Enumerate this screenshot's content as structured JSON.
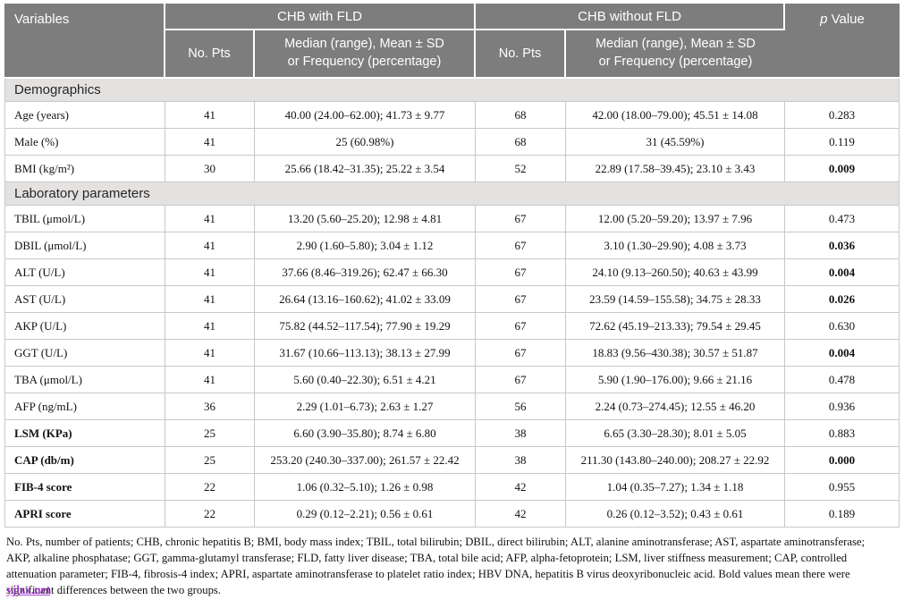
{
  "colors": {
    "header_bg": "#7d7d7d",
    "header_text": "#ffffff",
    "section_bg": "#e4e2e1",
    "row_border": "#cac8c7",
    "body_text": "#121212",
    "watermark": "#9b30c8"
  },
  "table": {
    "header": {
      "variables": "Variables",
      "group1": "CHB with FLD",
      "group2": "CHB without FLD",
      "p_italic": "p",
      "p_rest": " Value",
      "no_pts_1": "No. Pts",
      "no_pts_2": "No. Pts",
      "median_line1": "Median (range), Mean ± SD",
      "median_line2": "or Frequency (percentage)"
    },
    "rows": [
      {
        "type": "section",
        "label": "Demographics"
      },
      {
        "type": "data",
        "label": "Age (years)",
        "label_bold": false,
        "cells": [
          "41",
          "40.00 (24.00–62.00); 41.73 ± 9.77",
          "68",
          "42.00 (18.00–79.00); 45.51 ± 14.08",
          "0.283"
        ],
        "p_bold": false
      },
      {
        "type": "data",
        "label": "Male (%)",
        "label_bold": false,
        "cells": [
          "41",
          "25 (60.98%)",
          "68",
          "31 (45.59%)",
          "0.119"
        ],
        "p_bold": false
      },
      {
        "type": "data",
        "label": "BMI (kg/m²)",
        "label_bold": false,
        "cells": [
          "30",
          "25.66 (18.42–31.35); 25.22 ± 3.54",
          "52",
          "22.89 (17.58–39.45); 23.10 ± 3.43",
          "0.009"
        ],
        "p_bold": true
      },
      {
        "type": "section",
        "label": "Laboratory parameters"
      },
      {
        "type": "data",
        "label": "TBIL (μmol/L)",
        "label_bold": false,
        "cells": [
          "41",
          "13.20 (5.60–25.20); 12.98 ± 4.81",
          "67",
          "12.00 (5.20–59.20); 13.97 ± 7.96",
          "0.473"
        ],
        "p_bold": false
      },
      {
        "type": "data",
        "label": "DBIL (μmol/L)",
        "label_bold": false,
        "cells": [
          "41",
          "2.90 (1.60–5.80); 3.04 ± 1.12",
          "67",
          "3.10 (1.30–29.90); 4.08 ± 3.73",
          "0.036"
        ],
        "p_bold": true
      },
      {
        "type": "data",
        "label": "ALT (U/L)",
        "label_bold": false,
        "cells": [
          "41",
          "37.66 (8.46–319.26); 62.47 ± 66.30",
          "67",
          "24.10 (9.13–260.50); 40.63 ± 43.99",
          "0.004"
        ],
        "p_bold": true
      },
      {
        "type": "data",
        "label": "AST (U/L)",
        "label_bold": false,
        "cells": [
          "41",
          "26.64 (13.16–160.62); 41.02 ± 33.09",
          "67",
          "23.59 (14.59–155.58); 34.75 ± 28.33",
          "0.026"
        ],
        "p_bold": true
      },
      {
        "type": "data",
        "label": "AKP (U/L)",
        "label_bold": false,
        "cells": [
          "41",
          "75.82 (44.52–117.54); 77.90 ± 19.29",
          "67",
          "72.62 (45.19–213.33); 79.54 ± 29.45",
          "0.630"
        ],
        "p_bold": false
      },
      {
        "type": "data",
        "label": "GGT (U/L)",
        "label_bold": false,
        "cells": [
          "41",
          "31.67 (10.66–113.13); 38.13 ± 27.99",
          "67",
          "18.83 (9.56–430.38); 30.57 ± 51.87",
          "0.004"
        ],
        "p_bold": true
      },
      {
        "type": "data",
        "label": "TBA (μmol/L)",
        "label_bold": false,
        "cells": [
          "41",
          "5.60 (0.40–22.30); 6.51 ± 4.21",
          "67",
          "5.90 (1.90–176.00); 9.66 ± 21.16",
          "0.478"
        ],
        "p_bold": false
      },
      {
        "type": "data",
        "label": "AFP (ng/mL)",
        "label_bold": false,
        "cells": [
          "36",
          "2.29 (1.01–6.73); 2.63 ± 1.27",
          "56",
          "2.24 (0.73–274.45); 12.55 ± 46.20",
          "0.936"
        ],
        "p_bold": false
      },
      {
        "type": "data",
        "label": "LSM (KPa)",
        "label_bold": true,
        "cells": [
          "25",
          "6.60 (3.90–35.80); 8.74 ± 6.80",
          "38",
          "6.65 (3.30–28.30); 8.01 ± 5.05",
          "0.883"
        ],
        "p_bold": false
      },
      {
        "type": "data",
        "label": "CAP (db/m)",
        "label_bold": true,
        "cells": [
          "25",
          "253.20 (240.30–337.00); 261.57 ± 22.42",
          "38",
          "211.30 (143.80–240.00); 208.27 ± 22.92",
          "0.000"
        ],
        "p_bold": true
      },
      {
        "type": "data",
        "label": "FIB-4 score",
        "label_bold": true,
        "cells": [
          "22",
          "1.06 (0.32–5.10); 1.26 ± 0.98",
          "42",
          "1.04 (0.35–7.27); 1.34 ± 1.18",
          "0.955"
        ],
        "p_bold": false
      },
      {
        "type": "data",
        "label": "APRI score",
        "label_bold": true,
        "cells": [
          "22",
          "0.29 (0.12–2.21); 0.56 ± 0.61",
          "42",
          "0.26 (0.12–3.52); 0.43 ± 0.61",
          "0.189"
        ],
        "p_bold": false
      }
    ]
  },
  "footnote": {
    "lines": [
      "No. Pts, number of patients; CHB, chronic hepatitis B; BMI, body mass index; TBIL, total bilirubin; DBIL, direct bilirubin; ALT, alanine aminotransferase; AST, aspartate aminotransferase;",
      "AKP, alkaline phosphatase; GGT, gamma-glutamyl transferase; FLD, fatty liver disease; TBA, total bile acid; AFP, alpha-fetoprotein; LSM, liver stiffness measurement; CAP, controlled",
      "attenuation parameter; FIB-4, fibrosis-4 index; APRI, aspartate aminotransferase to platelet ratio index; HBV DNA, hepatitis B virus deoxyribonucleic acid. Bold values mean there were"
    ],
    "last_line": "significant differences between the two groups.",
    "watermark": "yjlzx.net"
  }
}
